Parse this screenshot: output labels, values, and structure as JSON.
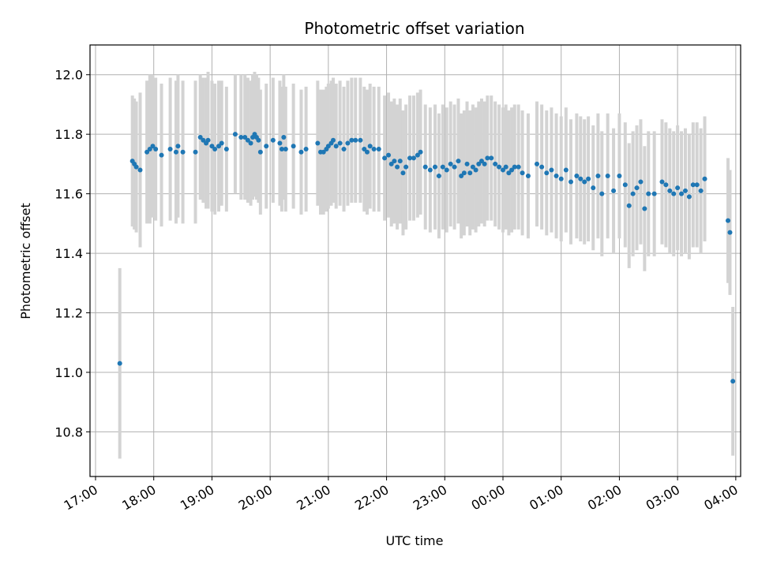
{
  "chart_data": {
    "type": "scatter",
    "title": "Photometric offset variation",
    "xlabel": "UTC time",
    "ylabel": "Photometric offset",
    "x_unit": "hour",
    "xlim": [
      "17:00",
      "04:05"
    ],
    "ylim": [
      10.65,
      12.1
    ],
    "x_ticks": [
      "17:00",
      "18:00",
      "19:00",
      "20:00",
      "21:00",
      "22:00",
      "23:00",
      "00:00",
      "01:00",
      "02:00",
      "03:00",
      "04:00"
    ],
    "y_ticks": [
      "10.8",
      "11.0",
      "11.2",
      "11.4",
      "11.6",
      "11.8",
      "12.0"
    ],
    "grid": true,
    "marker_color": "#1f77b4",
    "errorbar_color": "#d3d3d3",
    "series": [
      {
        "points": [
          {
            "x": "17:25",
            "y": 11.03,
            "err": 0.32
          },
          {
            "x": "17:38",
            "y": 11.71,
            "err": 0.22
          },
          {
            "x": "17:40",
            "y": 11.7,
            "err": 0.22
          },
          {
            "x": "17:42",
            "y": 11.69,
            "err": 0.22
          },
          {
            "x": "17:46",
            "y": 11.68,
            "err": 0.26
          },
          {
            "x": "17:53",
            "y": 11.74,
            "err": 0.24
          },
          {
            "x": "17:56",
            "y": 11.75,
            "err": 0.25
          },
          {
            "x": "17:59",
            "y": 11.76,
            "err": 0.24
          },
          {
            "x": "18:02",
            "y": 11.75,
            "err": 0.24
          },
          {
            "x": "18:08",
            "y": 11.73,
            "err": 0.24
          },
          {
            "x": "18:17",
            "y": 11.75,
            "err": 0.24
          },
          {
            "x": "18:23",
            "y": 11.74,
            "err": 0.24
          },
          {
            "x": "18:25",
            "y": 11.76,
            "err": 0.24
          },
          {
            "x": "18:30",
            "y": 11.74,
            "err": 0.24
          },
          {
            "x": "18:43",
            "y": 11.74,
            "err": 0.24
          },
          {
            "x": "18:48",
            "y": 11.79,
            "err": 0.21
          },
          {
            "x": "18:51",
            "y": 11.78,
            "err": 0.21
          },
          {
            "x": "18:54",
            "y": 11.77,
            "err": 0.22
          },
          {
            "x": "18:56",
            "y": 11.78,
            "err": 0.23
          },
          {
            "x": "19:00",
            "y": 11.76,
            "err": 0.22
          },
          {
            "x": "19:03",
            "y": 11.75,
            "err": 0.22
          },
          {
            "x": "19:07",
            "y": 11.76,
            "err": 0.22
          },
          {
            "x": "19:10",
            "y": 11.77,
            "err": 0.21
          },
          {
            "x": "19:15",
            "y": 11.75,
            "err": 0.21
          },
          {
            "x": "19:24",
            "y": 11.8,
            "err": 0.2
          },
          {
            "x": "19:30",
            "y": 11.79,
            "err": 0.21
          },
          {
            "x": "19:34",
            "y": 11.79,
            "err": 0.21
          },
          {
            "x": "19:37",
            "y": 11.78,
            "err": 0.21
          },
          {
            "x": "19:40",
            "y": 11.77,
            "err": 0.21
          },
          {
            "x": "19:42",
            "y": 11.79,
            "err": 0.21
          },
          {
            "x": "19:44",
            "y": 11.8,
            "err": 0.21
          },
          {
            "x": "19:46",
            "y": 11.79,
            "err": 0.21
          },
          {
            "x": "19:48",
            "y": 11.78,
            "err": 0.21
          },
          {
            "x": "19:50",
            "y": 11.74,
            "err": 0.21
          },
          {
            "x": "19:56",
            "y": 11.76,
            "err": 0.21
          },
          {
            "x": "20:03",
            "y": 11.78,
            "err": 0.21
          },
          {
            "x": "20:10",
            "y": 11.77,
            "err": 0.21
          },
          {
            "x": "20:12",
            "y": 11.75,
            "err": 0.21
          },
          {
            "x": "20:14",
            "y": 11.79,
            "err": 0.21
          },
          {
            "x": "20:16",
            "y": 11.75,
            "err": 0.21
          },
          {
            "x": "20:24",
            "y": 11.76,
            "err": 0.21
          },
          {
            "x": "20:32",
            "y": 11.74,
            "err": 0.21
          },
          {
            "x": "20:37",
            "y": 11.75,
            "err": 0.21
          },
          {
            "x": "20:49",
            "y": 11.77,
            "err": 0.21
          },
          {
            "x": "20:52",
            "y": 11.74,
            "err": 0.21
          },
          {
            "x": "20:55",
            "y": 11.74,
            "err": 0.21
          },
          {
            "x": "20:58",
            "y": 11.75,
            "err": 0.21
          },
          {
            "x": "21:00",
            "y": 11.76,
            "err": 0.21
          },
          {
            "x": "21:03",
            "y": 11.77,
            "err": 0.21
          },
          {
            "x": "21:05",
            "y": 11.78,
            "err": 0.21
          },
          {
            "x": "21:08",
            "y": 11.76,
            "err": 0.21
          },
          {
            "x": "21:12",
            "y": 11.77,
            "err": 0.21
          },
          {
            "x": "21:16",
            "y": 11.75,
            "err": 0.21
          },
          {
            "x": "21:20",
            "y": 11.77,
            "err": 0.21
          },
          {
            "x": "21:24",
            "y": 11.78,
            "err": 0.21
          },
          {
            "x": "21:28",
            "y": 11.78,
            "err": 0.21
          },
          {
            "x": "21:33",
            "y": 11.78,
            "err": 0.21
          },
          {
            "x": "21:37",
            "y": 11.75,
            "err": 0.21
          },
          {
            "x": "21:40",
            "y": 11.74,
            "err": 0.21
          },
          {
            "x": "21:43",
            "y": 11.76,
            "err": 0.21
          },
          {
            "x": "21:47",
            "y": 11.75,
            "err": 0.21
          },
          {
            "x": "21:52",
            "y": 11.75,
            "err": 0.21
          },
          {
            "x": "21:58",
            "y": 11.72,
            "err": 0.21
          },
          {
            "x": "22:02",
            "y": 11.73,
            "err": 0.21
          },
          {
            "x": "22:05",
            "y": 11.7,
            "err": 0.21
          },
          {
            "x": "22:08",
            "y": 11.71,
            "err": 0.21
          },
          {
            "x": "22:11",
            "y": 11.69,
            "err": 0.21
          },
          {
            "x": "22:14",
            "y": 11.71,
            "err": 0.21
          },
          {
            "x": "22:17",
            "y": 11.67,
            "err": 0.21
          },
          {
            "x": "22:20",
            "y": 11.69,
            "err": 0.21
          },
          {
            "x": "22:24",
            "y": 11.72,
            "err": 0.21
          },
          {
            "x": "22:28",
            "y": 11.72,
            "err": 0.21
          },
          {
            "x": "22:32",
            "y": 11.73,
            "err": 0.21
          },
          {
            "x": "22:35",
            "y": 11.74,
            "err": 0.21
          },
          {
            "x": "22:40",
            "y": 11.69,
            "err": 0.21
          },
          {
            "x": "22:45",
            "y": 11.68,
            "err": 0.21
          },
          {
            "x": "22:50",
            "y": 11.69,
            "err": 0.21
          },
          {
            "x": "22:54",
            "y": 11.66,
            "err": 0.21
          },
          {
            "x": "22:58",
            "y": 11.69,
            "err": 0.21
          },
          {
            "x": "23:02",
            "y": 11.68,
            "err": 0.21
          },
          {
            "x": "23:06",
            "y": 11.7,
            "err": 0.21
          },
          {
            "x": "23:10",
            "y": 11.69,
            "err": 0.21
          },
          {
            "x": "23:14",
            "y": 11.71,
            "err": 0.21
          },
          {
            "x": "23:17",
            "y": 11.66,
            "err": 0.21
          },
          {
            "x": "23:20",
            "y": 11.67,
            "err": 0.21
          },
          {
            "x": "23:23",
            "y": 11.7,
            "err": 0.21
          },
          {
            "x": "23:26",
            "y": 11.67,
            "err": 0.21
          },
          {
            "x": "23:29",
            "y": 11.69,
            "err": 0.21
          },
          {
            "x": "23:32",
            "y": 11.68,
            "err": 0.21
          },
          {
            "x": "23:35",
            "y": 11.7,
            "err": 0.21
          },
          {
            "x": "23:38",
            "y": 11.71,
            "err": 0.21
          },
          {
            "x": "23:41",
            "y": 11.7,
            "err": 0.21
          },
          {
            "x": "23:44",
            "y": 11.72,
            "err": 0.21
          },
          {
            "x": "23:48",
            "y": 11.72,
            "err": 0.21
          },
          {
            "x": "23:52",
            "y": 11.7,
            "err": 0.21
          },
          {
            "x": "23:56",
            "y": 11.69,
            "err": 0.21
          },
          {
            "x": "00:00",
            "y": 11.68,
            "err": 0.21
          },
          {
            "x": "00:03",
            "y": 11.69,
            "err": 0.21
          },
          {
            "x": "00:06",
            "y": 11.67,
            "err": 0.21
          },
          {
            "x": "00:09",
            "y": 11.68,
            "err": 0.21
          },
          {
            "x": "00:12",
            "y": 11.69,
            "err": 0.21
          },
          {
            "x": "00:16",
            "y": 11.69,
            "err": 0.21
          },
          {
            "x": "00:20",
            "y": 11.67,
            "err": 0.21
          },
          {
            "x": "00:26",
            "y": 11.66,
            "err": 0.21
          },
          {
            "x": "00:35",
            "y": 11.7,
            "err": 0.21
          },
          {
            "x": "00:40",
            "y": 11.69,
            "err": 0.21
          },
          {
            "x": "00:45",
            "y": 11.67,
            "err": 0.21
          },
          {
            "x": "00:50",
            "y": 11.68,
            "err": 0.21
          },
          {
            "x": "00:55",
            "y": 11.66,
            "err": 0.21
          },
          {
            "x": "01:00",
            "y": 11.65,
            "err": 0.21
          },
          {
            "x": "01:05",
            "y": 11.68,
            "err": 0.21
          },
          {
            "x": "01:10",
            "y": 11.64,
            "err": 0.21
          },
          {
            "x": "01:16",
            "y": 11.66,
            "err": 0.21
          },
          {
            "x": "01:20",
            "y": 11.65,
            "err": 0.21
          },
          {
            "x": "01:24",
            "y": 11.64,
            "err": 0.21
          },
          {
            "x": "01:28",
            "y": 11.65,
            "err": 0.21
          },
          {
            "x": "01:33",
            "y": 11.62,
            "err": 0.21
          },
          {
            "x": "01:38",
            "y": 11.66,
            "err": 0.21
          },
          {
            "x": "01:42",
            "y": 11.6,
            "err": 0.21
          },
          {
            "x": "01:48",
            "y": 11.66,
            "err": 0.21
          },
          {
            "x": "01:54",
            "y": 11.61,
            "err": 0.21
          },
          {
            "x": "02:00",
            "y": 11.66,
            "err": 0.21
          },
          {
            "x": "02:06",
            "y": 11.63,
            "err": 0.21
          },
          {
            "x": "02:10",
            "y": 11.56,
            "err": 0.21
          },
          {
            "x": "02:14",
            "y": 11.6,
            "err": 0.21
          },
          {
            "x": "02:18",
            "y": 11.62,
            "err": 0.21
          },
          {
            "x": "02:22",
            "y": 11.64,
            "err": 0.21
          },
          {
            "x": "02:26",
            "y": 11.55,
            "err": 0.21
          },
          {
            "x": "02:30",
            "y": 11.6,
            "err": 0.21
          },
          {
            "x": "02:36",
            "y": 11.6,
            "err": 0.21
          },
          {
            "x": "02:44",
            "y": 11.64,
            "err": 0.21
          },
          {
            "x": "02:48",
            "y": 11.63,
            "err": 0.21
          },
          {
            "x": "02:52",
            "y": 11.61,
            "err": 0.21
          },
          {
            "x": "02:56",
            "y": 11.6,
            "err": 0.21
          },
          {
            "x": "03:00",
            "y": 11.62,
            "err": 0.21
          },
          {
            "x": "03:04",
            "y": 11.6,
            "err": 0.21
          },
          {
            "x": "03:08",
            "y": 11.61,
            "err": 0.21
          },
          {
            "x": "03:12",
            "y": 11.59,
            "err": 0.21
          },
          {
            "x": "03:16",
            "y": 11.63,
            "err": 0.21
          },
          {
            "x": "03:20",
            "y": 11.63,
            "err": 0.21
          },
          {
            "x": "03:24",
            "y": 11.61,
            "err": 0.21
          },
          {
            "x": "03:28",
            "y": 11.65,
            "err": 0.21
          },
          {
            "x": "03:52",
            "y": 11.51,
            "err": 0.21
          },
          {
            "x": "03:54",
            "y": 11.47,
            "err": 0.21
          },
          {
            "x": "03:57",
            "y": 10.97,
            "err": 0.25
          }
        ]
      }
    ]
  }
}
